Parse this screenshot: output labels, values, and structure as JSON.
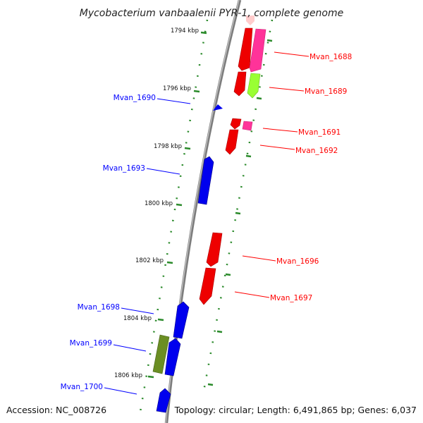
{
  "title": "Mycobacterium vanbaalenii PYR-1, complete genome",
  "accession": "Accession: NC_008726",
  "topology": "Topology: circular; Length: 6,491,865 bp; Genes: 6,037",
  "colors": {
    "forward_strand": "#ff0000",
    "reverse_strand": "#0000ff",
    "magenta": "#ff3399",
    "lime": "#99ff33",
    "olive": "#6b8e23",
    "pink": "#ffcccc",
    "backbone": "#888888",
    "tick": "#2a8a2a"
  },
  "kbp_marks": [
    {
      "label": "1794 kbp",
      "kb": 1794
    },
    {
      "label": "1796 kbp",
      "kb": 1796
    },
    {
      "label": "1798 kbp",
      "kb": 1798
    },
    {
      "label": "1800 kbp",
      "kb": 1800
    },
    {
      "label": "1802 kbp",
      "kb": 1802
    },
    {
      "label": "1804 kbp",
      "kb": 1804
    },
    {
      "label": "1806 kbp",
      "kb": 1806
    }
  ],
  "gene_labels": [
    {
      "name": "Mvan_1688",
      "strand": "forward"
    },
    {
      "name": "Mvan_1689",
      "strand": "forward"
    },
    {
      "name": "Mvan_1690",
      "strand": "reverse"
    },
    {
      "name": "Mvan_1691",
      "strand": "forward"
    },
    {
      "name": "Mvan_1692",
      "strand": "forward"
    },
    {
      "name": "Mvan_1693",
      "strand": "reverse"
    },
    {
      "name": "Mvan_1696",
      "strand": "forward"
    },
    {
      "name": "Mvan_1697",
      "strand": "forward"
    },
    {
      "name": "Mvan_1698",
      "strand": "reverse"
    },
    {
      "name": "Mvan_1699",
      "strand": "reverse"
    },
    {
      "name": "Mvan_1700",
      "strand": "reverse"
    }
  ]
}
